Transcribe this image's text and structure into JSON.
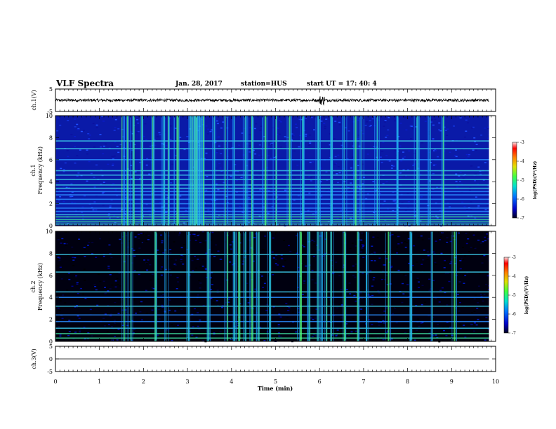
{
  "header": {
    "title": "VLF Spectra",
    "date": "Jan. 28, 2017",
    "station": "station=HUS",
    "start": "start UT =  17: 40: 4"
  },
  "chart_data": [
    {
      "type": "line",
      "panel": "ch1-waveform",
      "ylabel": "ch.1(V)",
      "ylim": [
        -5,
        5
      ],
      "yticks": [
        "5",
        "-5"
      ],
      "xlim": [
        0,
        10
      ],
      "baseline_value": 0,
      "noise_amplitude": 0.6,
      "bursts_min": [
        6.05
      ]
    },
    {
      "type": "heatmap",
      "panel": "ch1-spectrogram",
      "ylabel_top": "ch.1",
      "ylabel": "Frequency (kHz)",
      "ylim": [
        0,
        10
      ],
      "yticks": [
        "0",
        "2",
        "4",
        "6",
        "8",
        "10"
      ],
      "xlim": [
        0,
        10
      ],
      "data_end_min": 9.85,
      "horizontal_bands_khz": [
        0.15,
        0.35,
        0.55,
        0.8,
        1.0,
        1.3,
        1.6,
        2.0,
        2.4,
        2.8,
        3.1,
        3.4,
        3.7,
        4.2,
        4.6,
        5.0,
        6.0,
        7.0,
        7.7
      ],
      "bright_bursts_min": [
        1.5,
        1.62,
        1.75,
        1.95,
        2.2,
        2.45,
        2.55,
        2.75,
        3.05,
        3.1,
        3.15,
        3.2,
        3.25,
        3.3,
        3.35,
        3.6,
        3.85,
        4.05,
        4.3,
        4.45,
        4.75,
        5.0,
        5.3,
        5.6,
        5.95,
        6.25,
        6.55,
        6.8,
        6.95,
        7.3,
        7.75,
        8.2,
        8.5,
        8.8
      ],
      "colorbar": {
        "range": [
          -7,
          -3
        ],
        "ticks": [
          "-3",
          "-4",
          "-5",
          "-6",
          "-7"
        ],
        "label": "log(PSD)(V²/Hz)",
        "colors": [
          "#000020",
          "#0000c8",
          "#0070ff",
          "#00e0d0",
          "#40ff40",
          "#e0e000",
          "#ff8000",
          "#ff0000",
          "#ffe0e0"
        ]
      }
    },
    {
      "type": "heatmap",
      "panel": "ch2-spectrogram",
      "ylabel_top": "ch.2",
      "ylabel": "Frequency (kHz)",
      "ylim": [
        0,
        10
      ],
      "yticks": [
        "0",
        "2",
        "4",
        "6",
        "8",
        "10"
      ],
      "xlim": [
        0,
        10
      ],
      "data_end_min": 9.85,
      "horizontal_bands_khz": [
        0.3,
        0.7,
        1.2,
        1.8,
        2.4,
        3.2,
        4.0,
        4.5,
        6.3,
        7.9
      ],
      "bright_bursts_min": [
        1.55,
        1.7,
        2.25,
        2.5,
        3.0,
        3.45,
        3.9,
        4.05,
        4.15,
        4.3,
        4.45,
        4.6,
        4.85,
        5.55,
        5.75,
        5.95,
        6.05,
        6.15,
        6.25,
        6.55,
        6.85,
        7.05,
        7.55,
        8.05,
        8.55,
        9.05
      ],
      "colorbar": {
        "range": [
          -7,
          -3
        ],
        "ticks": [
          "-3",
          "-4",
          "-5",
          "-6",
          "-7"
        ],
        "label": "log(PSD)(V²/Hz)",
        "colors": [
          "#000020",
          "#0000c8",
          "#0070ff",
          "#00e0d0",
          "#40ff40",
          "#e0e000",
          "#ff8000",
          "#ff0000",
          "#ffe0e0"
        ]
      }
    },
    {
      "type": "line",
      "panel": "ch3-waveform",
      "ylabel": "ch.3(V)",
      "ylim": [
        -5,
        5
      ],
      "yticks": [
        "5",
        "0",
        "-5"
      ],
      "xlim": [
        0,
        10
      ],
      "baseline_value": 0
    }
  ],
  "xaxis": {
    "label": "Time (min)",
    "ticks": [
      "0",
      "1",
      "2",
      "3",
      "4",
      "5",
      "6",
      "7",
      "8",
      "9",
      "10"
    ]
  }
}
